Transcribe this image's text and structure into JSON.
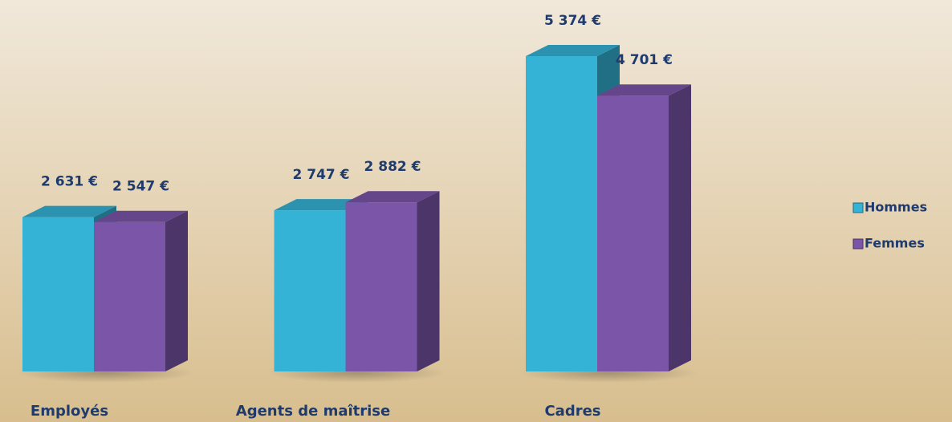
{
  "chart_data": {
    "type": "bar3d",
    "categories": [
      "Employés",
      "Agents de maîtrise",
      "Cadres"
    ],
    "series": [
      {
        "name": "Hommes",
        "color": "#35b3d6",
        "values": [
          2631,
          2747,
          5374
        ],
        "value_labels": [
          "2 631 €",
          "2 747 €",
          "5 374 €"
        ]
      },
      {
        "name": "Femmes",
        "color": "#7b55a8",
        "values": [
          2547,
          2882,
          4701
        ],
        "value_labels": [
          "2 547 €",
          "2 882 €",
          "4 701 €"
        ]
      }
    ],
    "legend": "right"
  }
}
